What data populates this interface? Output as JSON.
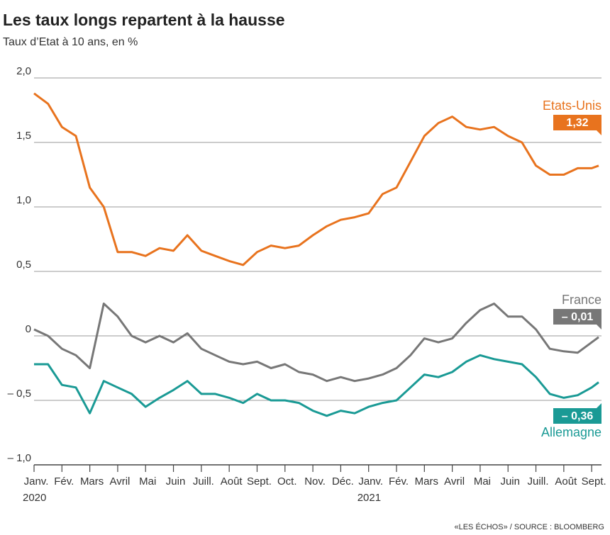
{
  "chart_data": {
    "type": "line",
    "title": "Les taux longs repartent à la hausse",
    "subtitle": "Taux d’Etat à 10 ans, en %",
    "source": "«LES ÉCHOS» / SOURCE : BLOOMBERG",
    "year_labels": [
      {
        "value": 0,
        "label": "2020"
      },
      {
        "value": 12,
        "label": "2021"
      }
    ],
    "x": [
      0,
      0.5,
      1,
      1.5,
      2,
      2.5,
      3,
      3.5,
      4,
      4.5,
      5,
      5.5,
      6,
      6.5,
      7,
      7.5,
      8,
      8.5,
      9,
      9.5,
      10,
      10.5,
      11,
      11.5,
      12,
      12.5,
      13,
      13.5,
      14,
      14.5,
      15,
      15.5,
      16,
      16.5,
      17,
      17.5,
      18,
      18.5,
      19,
      19.5,
      20,
      20.25
    ],
    "xlim": [
      0,
      20.25
    ],
    "xticks": [
      {
        "value": 0,
        "label": "Janv."
      },
      {
        "value": 1,
        "label": "Fév."
      },
      {
        "value": 2,
        "label": "Mars"
      },
      {
        "value": 3,
        "label": "Avril"
      },
      {
        "value": 4,
        "label": "Mai"
      },
      {
        "value": 5,
        "label": "Juin"
      },
      {
        "value": 6,
        "label": "Juill."
      },
      {
        "value": 7,
        "label": "Août"
      },
      {
        "value": 8,
        "label": "Sept."
      },
      {
        "value": 9,
        "label": "Oct."
      },
      {
        "value": 10,
        "label": "Nov."
      },
      {
        "value": 11,
        "label": "Déc."
      },
      {
        "value": 12,
        "label": "Janv."
      },
      {
        "value": 13,
        "label": "Fév."
      },
      {
        "value": 14,
        "label": "Mars"
      },
      {
        "value": 15,
        "label": "Avril"
      },
      {
        "value": 16,
        "label": "Mai"
      },
      {
        "value": 17,
        "label": "Juin"
      },
      {
        "value": 18,
        "label": "Juill."
      },
      {
        "value": 19,
        "label": "Août"
      },
      {
        "value": 20,
        "label": "Sept."
      }
    ],
    "ylim": [
      -1,
      2
    ],
    "yticks": [
      {
        "value": -1,
        "label": "– 1,0"
      },
      {
        "value": -0.5,
        "label": "– 0,5"
      },
      0,
      {
        "value": 0.5,
        "label": "0,5"
      },
      {
        "value": 1,
        "label": "1,0"
      },
      {
        "value": 1.5,
        "label": "1,5"
      },
      {
        "value": 2,
        "label": "2,0"
      }
    ],
    "grid": true,
    "series": [
      {
        "name": "Etats-Unis",
        "color": "#e8731e",
        "values": [
          1.88,
          1.8,
          1.62,
          1.55,
          1.15,
          1.0,
          0.65,
          0.65,
          0.62,
          0.68,
          0.66,
          0.78,
          0.66,
          0.62,
          0.58,
          0.55,
          0.65,
          0.7,
          0.68,
          0.7,
          0.78,
          0.85,
          0.9,
          0.92,
          0.95,
          1.1,
          1.15,
          1.35,
          1.55,
          1.65,
          1.7,
          1.62,
          1.6,
          1.62,
          1.55,
          1.5,
          1.32,
          1.25,
          1.25,
          1.3,
          1.3,
          1.32
        ],
        "value_labels": [
          null,
          null,
          null,
          null,
          null,
          null,
          null,
          null,
          null,
          null,
          null,
          null,
          null,
          null,
          null,
          null,
          null,
          null,
          null,
          null,
          null,
          null,
          null,
          null,
          null,
          null,
          null,
          null,
          null,
          null,
          null,
          null,
          null,
          null,
          null,
          null,
          null,
          null,
          null,
          null,
          null,
          "1,32"
        ]
      },
      {
        "name": "France",
        "color": "#777777",
        "values": [
          0.05,
          0.0,
          -0.1,
          -0.15,
          -0.25,
          0.25,
          0.15,
          0.0,
          -0.05,
          0.0,
          -0.05,
          0.02,
          -0.1,
          -0.15,
          -0.2,
          -0.22,
          -0.2,
          -0.25,
          -0.22,
          -0.28,
          -0.3,
          -0.35,
          -0.32,
          -0.35,
          -0.33,
          -0.3,
          -0.25,
          -0.15,
          -0.02,
          -0.05,
          -0.02,
          0.1,
          0.2,
          0.25,
          0.15,
          0.15,
          0.05,
          -0.1,
          -0.12,
          -0.13,
          -0.05,
          -0.01
        ],
        "value_labels": [
          null,
          null,
          null,
          null,
          null,
          null,
          null,
          null,
          null,
          null,
          null,
          null,
          null,
          null,
          null,
          null,
          null,
          null,
          null,
          null,
          null,
          null,
          null,
          null,
          null,
          null,
          null,
          null,
          null,
          null,
          null,
          null,
          null,
          null,
          null,
          null,
          null,
          null,
          null,
          null,
          null,
          "– 0,01"
        ]
      },
      {
        "name": "Allemagne",
        "color": "#1a9a95",
        "values": [
          -0.22,
          -0.22,
          -0.38,
          -0.4,
          -0.6,
          -0.35,
          -0.4,
          -0.45,
          -0.55,
          -0.48,
          -0.42,
          -0.35,
          -0.45,
          -0.45,
          -0.48,
          -0.52,
          -0.45,
          -0.5,
          -0.5,
          -0.52,
          -0.58,
          -0.62,
          -0.58,
          -0.6,
          -0.55,
          -0.52,
          -0.5,
          -0.4,
          -0.3,
          -0.32,
          -0.28,
          -0.2,
          -0.15,
          -0.18,
          -0.2,
          -0.22,
          -0.32,
          -0.45,
          -0.48,
          -0.46,
          -0.4,
          -0.36
        ],
        "value_labels": [
          null,
          null,
          null,
          null,
          null,
          null,
          null,
          null,
          null,
          null,
          null,
          null,
          null,
          null,
          null,
          null,
          null,
          null,
          null,
          null,
          null,
          null,
          null,
          null,
          null,
          null,
          null,
          null,
          null,
          null,
          null,
          null,
          null,
          null,
          null,
          null,
          null,
          null,
          null,
          null,
          null,
          "– 0,36"
        ]
      }
    ]
  }
}
